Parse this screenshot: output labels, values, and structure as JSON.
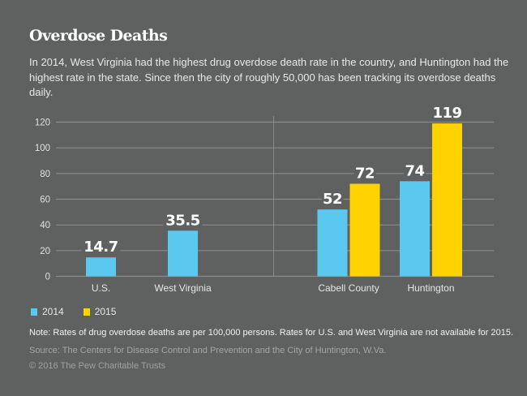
{
  "title": "Overdose Deaths",
  "subtitle": "In 2014, West Virginia had the highest drug overdose death rate in the country, and Huntington had the highest rate in the state. Since then the city of roughly 50,000 has been tracking its overdose deaths daily.",
  "colors": {
    "background": "#5f6060",
    "series_2014": "#5bc8f0",
    "series_2015": "#ffd200",
    "grid": "#8a8a8a"
  },
  "legend": [
    {
      "label": "2014",
      "color": "#5bc8f0"
    },
    {
      "label": "2015",
      "color": "#ffd200"
    }
  ],
  "note": "Note: Rates of drug overdose deaths are per 100,000 persons. Rates for U.S. and West Virginia are not available for 2015.",
  "source": "Source: The Centers for Disease Control and Prevention and the City of Huntington, W.Va.",
  "copyright": "© 2016 The Pew Charitable Trusts",
  "chart_data": {
    "type": "bar",
    "title": "Overdose Deaths",
    "xlabel": "",
    "ylabel": "",
    "ylim": [
      0,
      120
    ],
    "yticks": [
      0,
      20,
      40,
      60,
      80,
      100,
      120
    ],
    "grid": true,
    "legend_position": "bottom-left",
    "categories": [
      "U.S.",
      "West Virginia",
      "Cabell County",
      "Huntington"
    ],
    "series": [
      {
        "name": "2014",
        "color": "#5bc8f0",
        "values": [
          14.7,
          35.5,
          52,
          74
        ],
        "labels": [
          "14.7",
          "35.5",
          "52",
          "74"
        ]
      },
      {
        "name": "2015",
        "color": "#ffd200",
        "values": [
          null,
          null,
          72,
          119
        ],
        "labels": [
          null,
          null,
          "72",
          "119"
        ]
      }
    ]
  }
}
